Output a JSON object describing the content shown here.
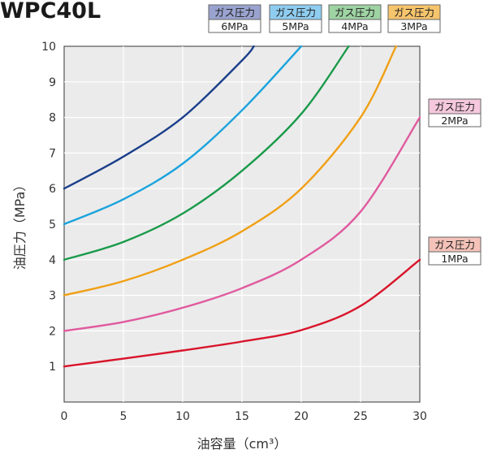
{
  "title": "WPC40L",
  "gas_label_prefix": "ガス圧力",
  "chart_data": {
    "type": "line",
    "title": "WPC40L",
    "xlabel": "油容量（cm³）",
    "ylabel": "油圧力（MPa）",
    "xlim": [
      0,
      30
    ],
    "ylim": [
      0,
      10
    ],
    "x_ticks": [
      0,
      5,
      10,
      15,
      20,
      25,
      30
    ],
    "y_ticks": [
      1,
      2,
      3,
      4,
      5,
      6,
      7,
      8,
      9,
      10
    ],
    "grid": true,
    "plot_background": "#ebebeb",
    "series": [
      {
        "name": "ガス圧力 6MPa",
        "gas": "6MPa",
        "color": "#1b3f8b",
        "tag_color": "#9aa3cf",
        "x": [
          0,
          5,
          10,
          15,
          16
        ],
        "y": [
          6.0,
          6.9,
          8.0,
          9.6,
          10.0
        ]
      },
      {
        "name": "ガス圧力 5MPa",
        "gas": "5MPa",
        "color": "#1aa3dd",
        "tag_color": "#8fcdf0",
        "x": [
          0,
          5,
          10,
          15,
          20
        ],
        "y": [
          5.0,
          5.7,
          6.7,
          8.2,
          10.0
        ]
      },
      {
        "name": "ガス圧力 4MPa",
        "gas": "4MPa",
        "color": "#1a9a4a",
        "tag_color": "#9ed3a3",
        "x": [
          0,
          5,
          10,
          15,
          20,
          24
        ],
        "y": [
          4.0,
          4.5,
          5.3,
          6.5,
          8.1,
          10.0
        ]
      },
      {
        "name": "ガス圧力 3MPa",
        "gas": "3MPa",
        "color": "#f0a015",
        "tag_color": "#f6c46c",
        "x": [
          0,
          5,
          10,
          15,
          20,
          25,
          28
        ],
        "y": [
          3.0,
          3.4,
          4.0,
          4.8,
          6.0,
          8.0,
          10.0
        ]
      },
      {
        "name": "ガス圧力 2MPa",
        "gas": "2MPa",
        "color": "#e05a9e",
        "tag_color": "#f5c8dd",
        "x": [
          0,
          5,
          10,
          15,
          20,
          25,
          30
        ],
        "y": [
          2.0,
          2.25,
          2.65,
          3.2,
          4.0,
          5.35,
          8.0
        ]
      },
      {
        "name": "ガス圧力 1MPa",
        "gas": "1MPa",
        "color": "#d9142a",
        "tag_color": "#f4c2b8",
        "x": [
          0,
          5,
          10,
          15,
          20,
          25,
          30
        ],
        "y": [
          1.0,
          1.22,
          1.45,
          1.7,
          2.02,
          2.7,
          4.0
        ]
      }
    ]
  }
}
